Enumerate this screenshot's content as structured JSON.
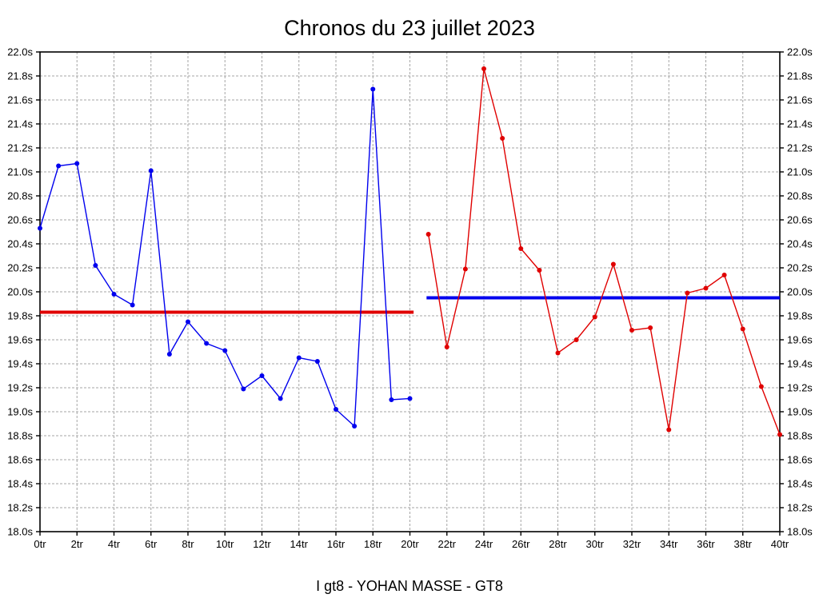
{
  "title": "Chronos du 23 juillet 2023",
  "footer": "I gt8 - YOHAN MASSE - GT8",
  "chart_data": {
    "type": "line",
    "title": "Chronos du 23 juillet 2023",
    "xlabel": "",
    "ylabel": "",
    "x_unit": "tr",
    "y_unit": "s",
    "xlim": [
      0,
      40
    ],
    "ylim": [
      18.0,
      22.0
    ],
    "x_tick_step": 2,
    "y_tick_step": 0.2,
    "grid": true,
    "legend_position": "none",
    "x_tick_labels": [
      "0tr",
      "2tr",
      "4tr",
      "6tr",
      "8tr",
      "10tr",
      "12tr",
      "14tr",
      "16tr",
      "18tr",
      "20tr",
      "22tr",
      "24tr",
      "26tr",
      "28tr",
      "30tr",
      "32tr",
      "34tr",
      "36tr",
      "38tr",
      "40tr"
    ],
    "y_tick_labels": [
      "22.0s",
      "21.8s",
      "21.6s",
      "21.4s",
      "21.2s",
      "21.0s",
      "20.8s",
      "20.6s",
      "20.4s",
      "20.2s",
      "20.0s",
      "19.8s",
      "19.6s",
      "19.4s",
      "19.2s",
      "19.0s",
      "18.8s",
      "18.6s",
      "18.4s",
      "18.2s",
      "18.0s"
    ],
    "series": [
      {
        "name": "first-stint-laps",
        "color": "#0000ee",
        "marker": "circle",
        "x": [
          0,
          1,
          2,
          3,
          4,
          5,
          6,
          7,
          8,
          9,
          10,
          11,
          12,
          13,
          14,
          15,
          16,
          17,
          18,
          19,
          20
        ],
        "y": [
          20.53,
          21.05,
          21.07,
          20.22,
          19.98,
          19.89,
          21.01,
          19.48,
          19.75,
          19.57,
          19.51,
          19.19,
          19.3,
          19.11,
          19.45,
          19.42,
          19.02,
          18.88,
          21.69,
          19.1,
          19.11
        ]
      },
      {
        "name": "second-stint-laps",
        "color": "#e00000",
        "marker": "circle",
        "x": [
          21,
          22,
          23,
          24,
          25,
          26,
          27,
          28,
          29,
          30,
          31,
          32,
          33,
          34,
          35,
          36,
          37,
          38,
          39,
          40
        ],
        "y": [
          20.48,
          19.54,
          20.19,
          21.86,
          21.28,
          20.36,
          20.18,
          19.49,
          19.6,
          19.79,
          20.23,
          19.68,
          19.7,
          18.85,
          19.99,
          20.03,
          20.14,
          19.69,
          19.21,
          18.81
        ]
      }
    ],
    "reference_lines": [
      {
        "name": "first-stint-average",
        "color": "#e00000",
        "y": 19.83,
        "x_start": 0,
        "x_end": 20.2
      },
      {
        "name": "second-stint-average",
        "color": "#0000ee",
        "y": 19.95,
        "x_start": 20.9,
        "x_end": 40
      }
    ],
    "grid_color": "#a6a6a6",
    "frame_color": "#000000"
  }
}
